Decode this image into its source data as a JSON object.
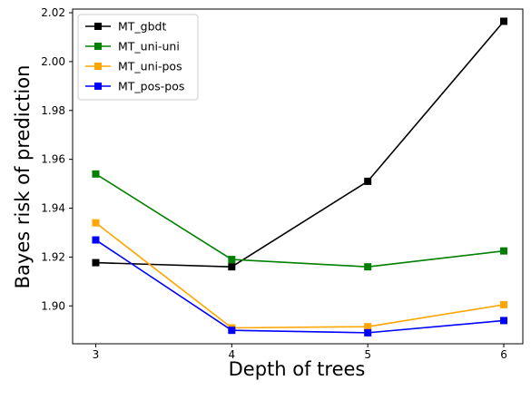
{
  "chart_data": {
    "type": "line",
    "title": "",
    "xlabel": "Depth of trees",
    "ylabel": "Bayes risk of prediction",
    "x": [
      3,
      4,
      5,
      6
    ],
    "xticks": [
      "3",
      "4",
      "5",
      "6"
    ],
    "xlim": [
      2.83,
      6.14
    ],
    "ylim": [
      1.8845,
      2.0215
    ],
    "yticks": [
      "1.90",
      "1.92",
      "1.94",
      "1.96",
      "1.98",
      "2.00",
      "2.02"
    ],
    "legend_position": "top-left",
    "grid": false,
    "marker": "square",
    "series": [
      {
        "name": "MT_gbdt",
        "color": "#000000",
        "values": [
          1.9177,
          1.916,
          1.951,
          2.0165
        ]
      },
      {
        "name": "MT_uni-uni",
        "color": "#008000",
        "values": [
          1.954,
          1.919,
          1.916,
          1.9225
        ]
      },
      {
        "name": "MT_uni-pos",
        "color": "#ffa500",
        "values": [
          1.934,
          1.891,
          1.8915,
          1.9005
        ]
      },
      {
        "name": "MT_pos-pos",
        "color": "#0000ff",
        "values": [
          1.927,
          1.89,
          1.889,
          1.894
        ]
      }
    ]
  }
}
